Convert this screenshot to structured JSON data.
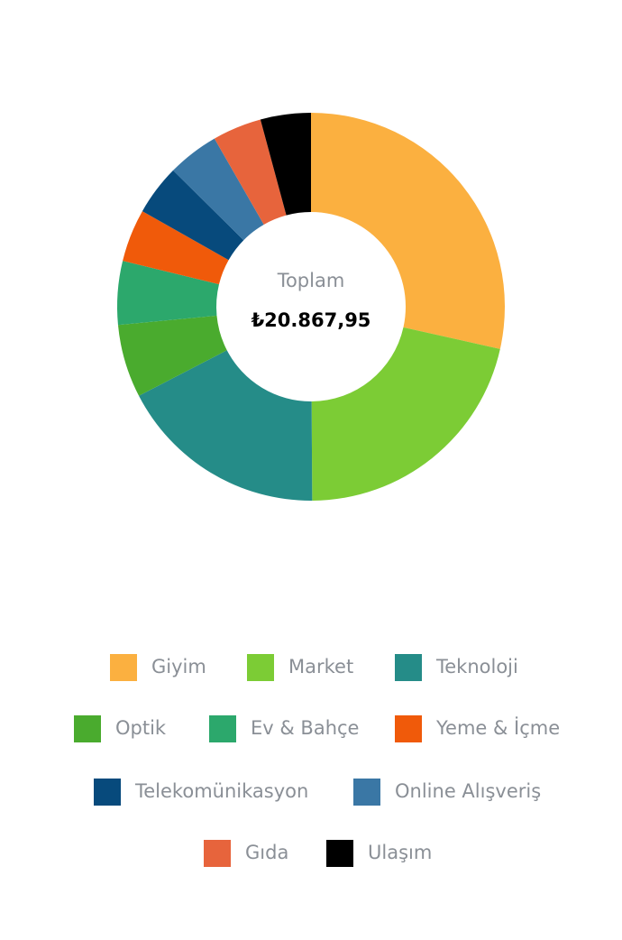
{
  "chart_data": {
    "type": "donut",
    "center_label": "Toplam",
    "center_value": "₺20.867,95",
    "categories": [
      "Giyim",
      "Market",
      "Teknoloji",
      "Optik",
      "Ev & Bahçe",
      "Yeme & İçme",
      "Telekomünikasyon",
      "Online Alışveriş",
      "Gıda",
      "Ulaşım"
    ],
    "values": [
      28.5,
      21.4,
      17.5,
      6.1,
      5.3,
      4.4,
      4.2,
      4.3,
      4.1,
      4.2
    ],
    "colors": [
      "#fbb040",
      "#7ccc35",
      "#258c88",
      "#4aab2e",
      "#2ca86c",
      "#f05a0a",
      "#074a7c",
      "#3a77a5",
      "#e7643c",
      "#000000"
    ]
  }
}
